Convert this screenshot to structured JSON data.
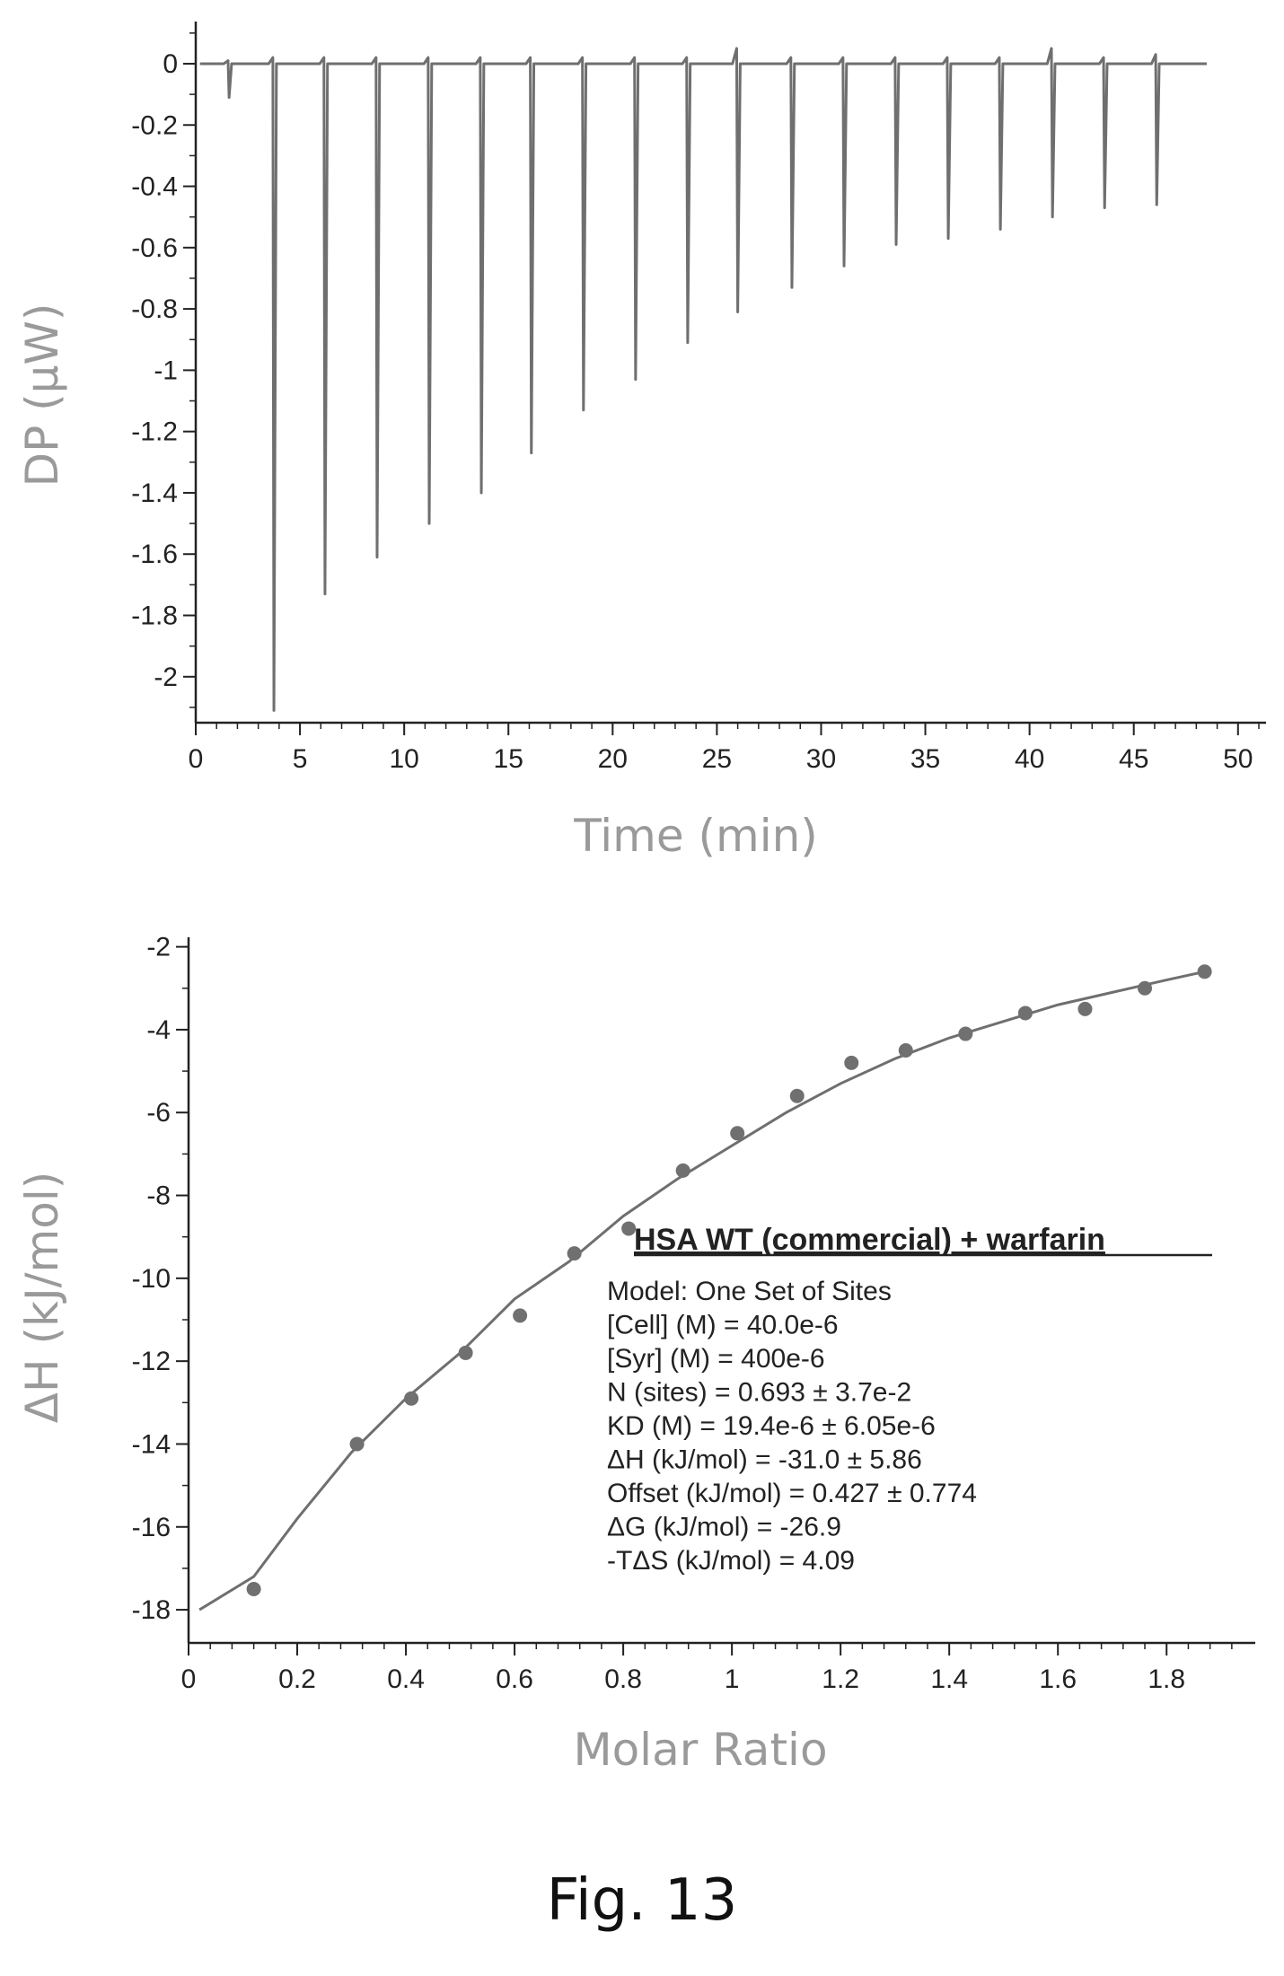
{
  "figure": {
    "caption": "Fig. 13"
  },
  "colors": {
    "trace": "#6f6f6f",
    "axis": "#222222",
    "label": "#9a9a9a",
    "annotation": "#222222"
  },
  "chart_data": [
    {
      "type": "line",
      "title": "",
      "xlabel": "Time (min)",
      "ylabel": "DP (μW)",
      "xlim": [
        0,
        51
      ],
      "ylim": [
        -2.15,
        0.12
      ],
      "xticks": [
        0,
        5,
        10,
        15,
        20,
        25,
        30,
        35,
        40,
        45,
        50
      ],
      "xtick_labels": [
        "0",
        "5",
        "10",
        "15",
        "20",
        "25",
        "30",
        "35",
        "40",
        "45",
        "50"
      ],
      "yticks": [
        0,
        -0.2,
        -0.4,
        -0.6,
        -0.8,
        -1,
        -1.2,
        -1.4,
        -1.6,
        -1.8,
        -2
      ],
      "ytick_labels": [
        "0",
        "-0.2",
        "-0.4",
        "-0.6",
        "-0.8",
        "-1",
        "-1.2",
        "-1.4",
        "-1.6",
        "-1.8",
        "-2"
      ],
      "baseline": {
        "x_start": 0.2,
        "x_end": 48.5,
        "y": 0.0
      },
      "series": [
        {
          "injections": [
            {
              "time": 1.6,
              "dp": -0.11,
              "overshoot": 0.01
            },
            {
              "time": 3.75,
              "dp": -2.11,
              "overshoot": 0.02
            },
            {
              "time": 6.2,
              "dp": -1.73,
              "overshoot": 0.02
            },
            {
              "time": 8.7,
              "dp": -1.61,
              "overshoot": 0.02
            },
            {
              "time": 11.2,
              "dp": -1.5,
              "overshoot": 0.02
            },
            {
              "time": 13.7,
              "dp": -1.4,
              "overshoot": 0.02
            },
            {
              "time": 16.1,
              "dp": -1.27,
              "overshoot": 0.02
            },
            {
              "time": 18.6,
              "dp": -1.13,
              "overshoot": 0.02
            },
            {
              "time": 21.1,
              "dp": -1.03,
              "overshoot": 0.02
            },
            {
              "time": 23.6,
              "dp": -0.91,
              "overshoot": 0.02
            },
            {
              "time": 26.0,
              "dp": -0.81,
              "overshoot": 0.05
            },
            {
              "time": 28.6,
              "dp": -0.73,
              "overshoot": 0.02
            },
            {
              "time": 31.1,
              "dp": -0.66,
              "overshoot": 0.02
            },
            {
              "time": 33.6,
              "dp": -0.59,
              "overshoot": 0.02
            },
            {
              "time": 36.1,
              "dp": -0.57,
              "overshoot": 0.02
            },
            {
              "time": 38.6,
              "dp": -0.54,
              "overshoot": 0.02
            },
            {
              "time": 41.1,
              "dp": -0.5,
              "overshoot": 0.05
            },
            {
              "time": 43.6,
              "dp": -0.47,
              "overshoot": 0.02
            },
            {
              "time": 46.1,
              "dp": -0.46,
              "overshoot": 0.03
            }
          ]
        }
      ]
    },
    {
      "type": "scatter",
      "title": "",
      "xlabel": "Molar Ratio",
      "ylabel": "ΔH (kJ/mol)",
      "xlim": [
        0,
        1.95
      ],
      "ylim": [
        -18.8,
        -1.9
      ],
      "xticks": [
        0,
        0.2,
        0.4,
        0.6,
        0.8,
        1,
        1.2,
        1.4,
        1.6,
        1.8
      ],
      "xtick_labels": [
        "0",
        "0.2",
        "0.4",
        "0.6",
        "0.8",
        "1",
        "1.2",
        "1.4",
        "1.6",
        "1.8"
      ],
      "yticks": [
        -2,
        -4,
        -6,
        -8,
        -10,
        -12,
        -14,
        -16,
        -18
      ],
      "ytick_labels": [
        "-2",
        "-4",
        "-6",
        "-8",
        "-10",
        "-12",
        "-14",
        "-16",
        "-18"
      ],
      "series": [
        {
          "role": "points",
          "x": [
            0.12,
            0.31,
            0.41,
            0.51,
            0.61,
            0.71,
            0.81,
            0.91,
            1.01,
            1.12,
            1.22,
            1.32,
            1.43,
            1.54,
            1.65,
            1.76,
            1.87
          ],
          "y": [
            -17.5,
            -14.0,
            -12.9,
            -11.8,
            -10.9,
            -9.4,
            -8.8,
            -7.4,
            -6.5,
            -5.6,
            -4.8,
            -4.5,
            -4.1,
            -3.6,
            -3.5,
            -3.0,
            -2.6
          ]
        },
        {
          "role": "fit",
          "x": [
            0.02,
            0.12,
            0.2,
            0.3,
            0.4,
            0.5,
            0.6,
            0.7,
            0.8,
            0.9,
            1.0,
            1.1,
            1.2,
            1.3,
            1.4,
            1.5,
            1.6,
            1.7,
            1.8,
            1.87
          ],
          "y": [
            -18.0,
            -17.2,
            -15.8,
            -14.2,
            -12.9,
            -11.8,
            -10.5,
            -9.6,
            -8.5,
            -7.6,
            -6.8,
            -6.0,
            -5.3,
            -4.7,
            -4.2,
            -3.8,
            -3.4,
            -3.1,
            -2.8,
            -2.6
          ]
        }
      ],
      "annotation": {
        "title": "HSA WT (commercial) + warfarin",
        "lines": [
          "Model: One Set of Sites",
          "[Cell] (M) = 40.0e-6",
          "[Syr] (M) = 400e-6",
          "N (sites) = 0.693 ± 3.7e-2",
          "KD (M) = 19.4e-6 ± 6.05e-6",
          "ΔH (kJ/mol) = -31.0 ± 5.86",
          "Offset (kJ/mol) = 0.427 ± 0.774",
          "ΔG (kJ/mol) = -26.9",
          "-TΔS (kJ/mol) = 4.09"
        ]
      }
    }
  ]
}
